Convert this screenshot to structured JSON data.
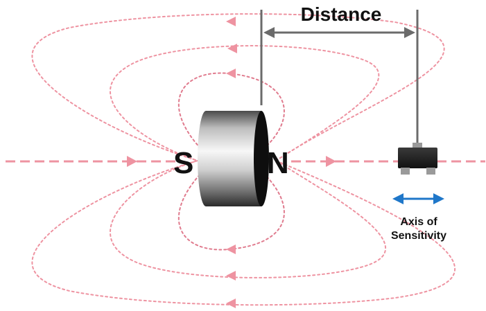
{
  "diagram": {
    "distance_label": "Distance",
    "south_label": "S",
    "north_label": "N",
    "sensitivity_label_line1": "Axis of",
    "sensitivity_label_line2": "Sensitivity",
    "colors": {
      "field": "#ee93a1",
      "measure": "#6b6b6b",
      "sensitivity_arrow": "#1f77c9",
      "sensor_body": "#1a1a1a",
      "sensor_pins": "#9a9a9a"
    }
  }
}
